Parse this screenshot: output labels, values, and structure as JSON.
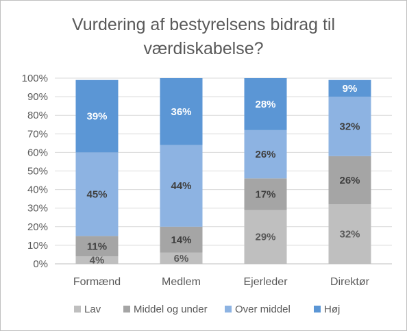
{
  "chart_data": {
    "type": "bar",
    "stacked": true,
    "title": "Vurdering af bestyrelsens bidrag til værdiskabelse?",
    "title_lines": [
      "Vurdering af bestyrelsens bidrag til",
      "værdiskabelse?"
    ],
    "categories": [
      "Formænd",
      "Medlem",
      "Ejerleder",
      "Direktør"
    ],
    "series": [
      {
        "name": "Lav",
        "color": "#bfbfbf",
        "label_color": "#595959",
        "values": [
          4,
          6,
          29,
          32
        ],
        "labels": [
          "4%",
          "6%",
          "29%",
          "32%"
        ]
      },
      {
        "name": "Middel og under",
        "color": "#a5a5a5",
        "label_color": "#404040",
        "values": [
          11,
          14,
          17,
          26
        ],
        "labels": [
          "11%",
          "14%",
          "17%",
          "26%"
        ]
      },
      {
        "name": "Over middel",
        "color": "#8db3e2",
        "label_color": "#404040",
        "values": [
          45,
          44,
          26,
          32
        ],
        "labels": [
          "45%",
          "44%",
          "26%",
          "32%"
        ]
      },
      {
        "name": "Høj",
        "color": "#5b96d5",
        "label_color": "#ffffff",
        "values": [
          39,
          36,
          28,
          9
        ],
        "labels": [
          "39%",
          "36%",
          "28%",
          "9%"
        ]
      }
    ],
    "y_ticks": [
      "0%",
      "10%",
      "20%",
      "30%",
      "40%",
      "50%",
      "60%",
      "70%",
      "80%",
      "90%",
      "100%"
    ],
    "ylim": [
      0,
      100
    ],
    "grid": true,
    "legend": "bottom"
  }
}
